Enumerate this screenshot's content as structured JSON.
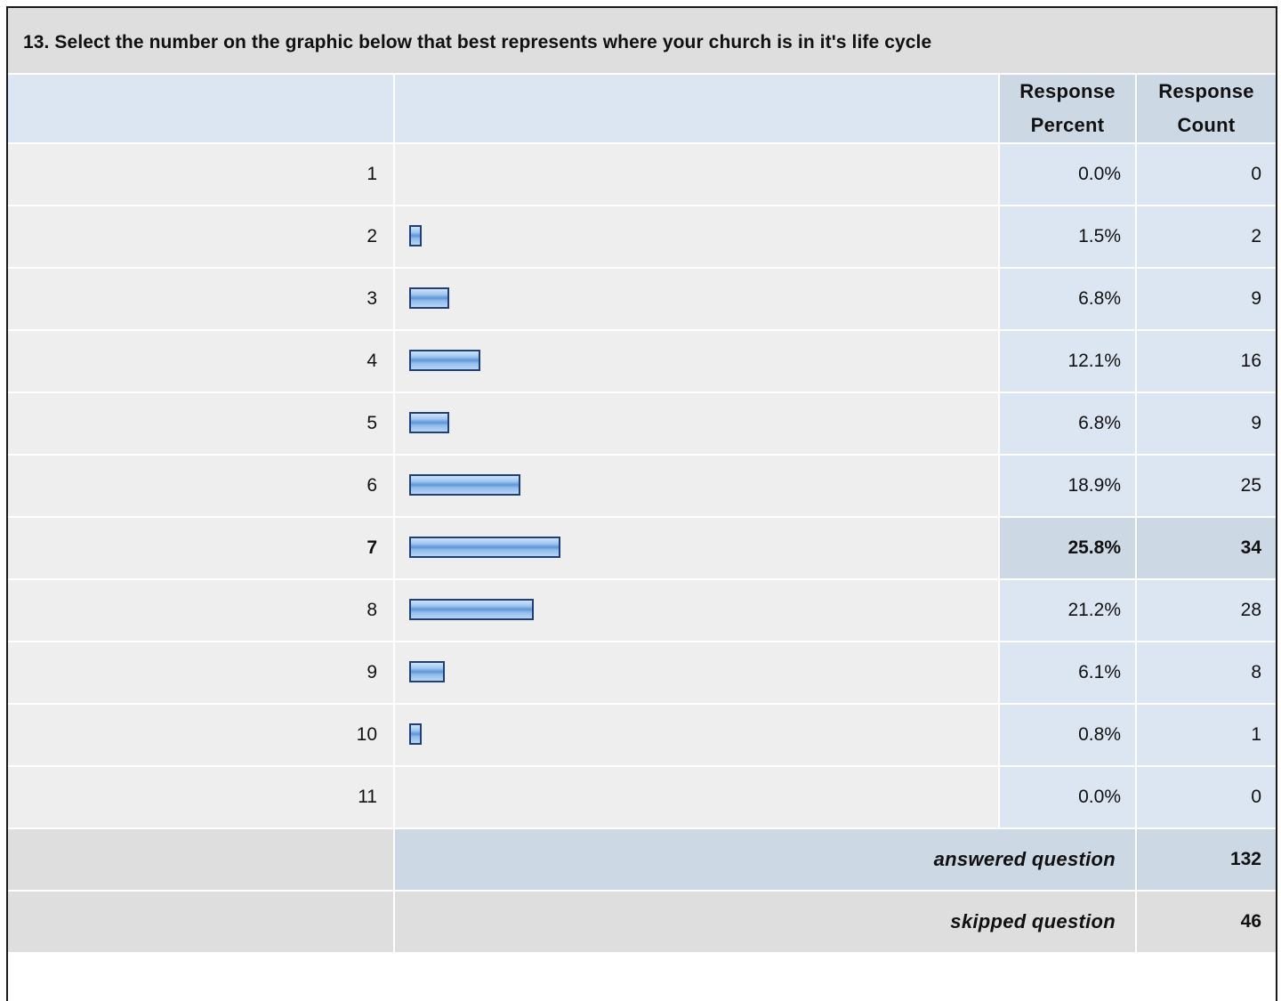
{
  "question": {
    "title": "13. Select the number on the graphic below that best represents where your church is in it's life cycle"
  },
  "columns": {
    "percent": "Response Percent",
    "count": "Response Count"
  },
  "chart_data": {
    "type": "bar",
    "orientation": "horizontal",
    "categories": [
      "1",
      "2",
      "3",
      "4",
      "5",
      "6",
      "7",
      "8",
      "9",
      "10",
      "11"
    ],
    "values": [
      0.0,
      1.5,
      6.8,
      12.1,
      6.8,
      18.9,
      25.8,
      21.2,
      6.1,
      0.8,
      0.0
    ],
    "value_unit": "percent",
    "counts": [
      0,
      2,
      9,
      16,
      9,
      25,
      34,
      28,
      8,
      1,
      0
    ],
    "highlighted_category": "7",
    "bar_color": "#8fbbec",
    "bar_border_color": "#1f3f76"
  },
  "rows": [
    {
      "label": "1",
      "percent": "0.0%",
      "count": "0"
    },
    {
      "label": "2",
      "percent": "1.5%",
      "count": "2"
    },
    {
      "label": "3",
      "percent": "6.8%",
      "count": "9"
    },
    {
      "label": "4",
      "percent": "12.1%",
      "count": "16"
    },
    {
      "label": "5",
      "percent": "6.8%",
      "count": "9"
    },
    {
      "label": "6",
      "percent": "18.9%",
      "count": "25"
    },
    {
      "label": "7",
      "percent": "25.8%",
      "count": "34"
    },
    {
      "label": "8",
      "percent": "21.2%",
      "count": "28"
    },
    {
      "label": "9",
      "percent": "6.1%",
      "count": "8"
    },
    {
      "label": "10",
      "percent": "0.8%",
      "count": "1"
    },
    {
      "label": "11",
      "percent": "0.0%",
      "count": "0"
    }
  ],
  "summary": {
    "answered_label": "answered question",
    "answered_value": "132",
    "skipped_label": "skipped question",
    "skipped_value": "46"
  }
}
